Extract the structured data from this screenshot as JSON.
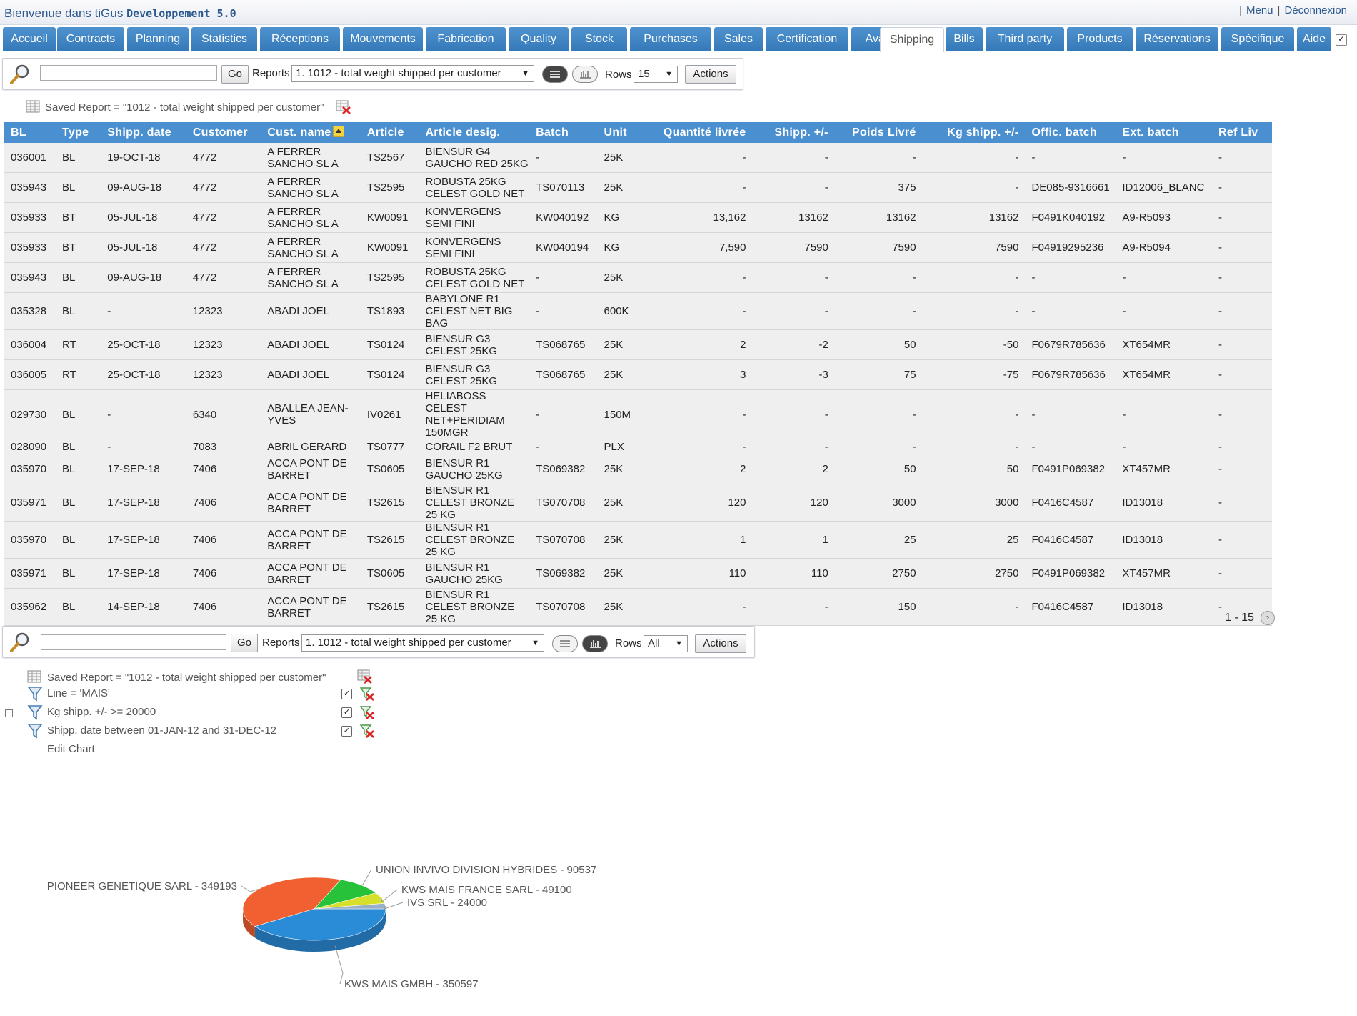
{
  "header": {
    "welcome": "Bienvenue dans tiGus",
    "app_version": "Developpement 5.0",
    "menu_link": "Menu",
    "logout_link": "Déconnexion"
  },
  "tabs": [
    "Accueil",
    "Contracts",
    "Planning",
    "Statistics",
    "Réceptions",
    "Mouvements",
    "Fabrication",
    "Quality",
    "Stock",
    "Purchases",
    "Sales",
    "Certification",
    "Available",
    "Shipping",
    "Bills",
    "Third party",
    "Products",
    "Réservations",
    "Spécifique",
    "Aide"
  ],
  "active_tab": "Shipping",
  "toolbar_top": {
    "search_value": "",
    "go_label": "Go",
    "reports_label": "Reports",
    "report_selected": "1. 1012 - total weight shipped per customer",
    "rows_label": "Rows",
    "rows_value": "15",
    "actions_label": "Actions"
  },
  "saved_report_top": "Saved Report = \"1012 - total weight shipped per customer\"",
  "table": {
    "columns": [
      "BL",
      "Type",
      "Shipp. date",
      "Customer",
      "Cust. name",
      "Article",
      "Article desig.",
      "Batch",
      "Unit",
      "Quantité livrée",
      "Shipp. +/-",
      "Poids Livré",
      "Kg shipp. +/-",
      "Offic. batch",
      "Ext. batch",
      "Ref Liv"
    ],
    "rows": [
      [
        "036001",
        "BL",
        "19-OCT-18",
        "4772",
        "A FERRER SANCHO SL A",
        "TS2567",
        "BIENSUR G4 GAUCHO RED 25KG",
        "-",
        "25K",
        "-",
        "-",
        "-",
        "-",
        "-",
        "-",
        "-"
      ],
      [
        "035943",
        "BL",
        "09-AUG-18",
        "4772",
        "A FERRER SANCHO SL A",
        "TS2595",
        "ROBUSTA 25KG CELEST GOLD NET",
        "TS070113",
        "25K",
        "-",
        "-",
        "375",
        "-",
        "DE085-9316661",
        "ID12006_BLANC",
        "-"
      ],
      [
        "035933",
        "BT",
        "05-JUL-18",
        "4772",
        "A FERRER SANCHO SL A",
        "KW0091",
        "KONVERGENS SEMI FINI",
        "KW040192",
        "KG",
        "13,162",
        "13162",
        "13162",
        "13162",
        "F0491K040192",
        "A9-R5093",
        "-"
      ],
      [
        "035933",
        "BT",
        "05-JUL-18",
        "4772",
        "A FERRER SANCHO SL A",
        "KW0091",
        "KONVERGENS SEMI FINI",
        "KW040194",
        "KG",
        "7,590",
        "7590",
        "7590",
        "7590",
        "F04919295236",
        "A9-R5094",
        "-"
      ],
      [
        "035943",
        "BL",
        "09-AUG-18",
        "4772",
        "A FERRER SANCHO SL A",
        "TS2595",
        "ROBUSTA 25KG CELEST GOLD NET",
        "-",
        "25K",
        "-",
        "-",
        "-",
        "-",
        "-",
        "-",
        "-"
      ],
      [
        "035328",
        "BL",
        "-",
        "12323",
        "ABADI JOEL",
        "TS1893",
        "BABYLONE R1 CELEST NET BIG BAG",
        "-",
        "600K",
        "-",
        "-",
        "-",
        "-",
        "-",
        "-",
        "-"
      ],
      [
        "036004",
        "RT",
        "25-OCT-18",
        "12323",
        "ABADI JOEL",
        "TS0124",
        "BIENSUR G3 CELEST 25KG",
        "TS068765",
        "25K",
        "2",
        "-2",
        "50",
        "-50",
        "F0679R785636",
        "XT654MR",
        "-"
      ],
      [
        "036005",
        "RT",
        "25-OCT-18",
        "12323",
        "ABADI JOEL",
        "TS0124",
        "BIENSUR G3 CELEST 25KG",
        "TS068765",
        "25K",
        "3",
        "-3",
        "75",
        "-75",
        "F0679R785636",
        "XT654MR",
        "-"
      ],
      [
        "029730",
        "BL",
        "-",
        "6340",
        "ABALLEA JEAN-YVES",
        "IV0261",
        "HELIABOSS CELEST NET+PERIDIAM 150MGR",
        "-",
        "150M",
        "-",
        "-",
        "-",
        "-",
        "-",
        "-",
        "-"
      ],
      [
        "028090",
        "BL",
        "-",
        "7083",
        "ABRIL GERARD",
        "TS0777",
        "CORAIL F2 BRUT",
        "-",
        "PLX",
        "-",
        "-",
        "-",
        "-",
        "-",
        "-",
        "-"
      ],
      [
        "035970",
        "BL",
        "17-SEP-18",
        "7406",
        "ACCA PONT DE BARRET",
        "TS0605",
        "BIENSUR R1 GAUCHO 25KG",
        "TS069382",
        "25K",
        "2",
        "2",
        "50",
        "50",
        "F0491P069382",
        "XT457MR",
        "-"
      ],
      [
        "035971",
        "BL",
        "17-SEP-18",
        "7406",
        "ACCA PONT DE BARRET",
        "TS2615",
        "BIENSUR R1 CELEST BRONZE 25 KG",
        "TS070708",
        "25K",
        "120",
        "120",
        "3000",
        "3000",
        "F0416C4587",
        "ID13018",
        "-"
      ],
      [
        "035970",
        "BL",
        "17-SEP-18",
        "7406",
        "ACCA PONT DE BARRET",
        "TS2615",
        "BIENSUR R1 CELEST BRONZE 25 KG",
        "TS070708",
        "25K",
        "1",
        "1",
        "25",
        "25",
        "F0416C4587",
        "ID13018",
        "-"
      ],
      [
        "035971",
        "BL",
        "17-SEP-18",
        "7406",
        "ACCA PONT DE BARRET",
        "TS0605",
        "BIENSUR R1 GAUCHO 25KG",
        "TS069382",
        "25K",
        "110",
        "110",
        "2750",
        "2750",
        "F0491P069382",
        "XT457MR",
        "-"
      ],
      [
        "035962",
        "BL",
        "14-SEP-18",
        "7406",
        "ACCA PONT DE BARRET",
        "TS2615",
        "BIENSUR R1 CELEST BRONZE 25 KG",
        "TS070708",
        "25K",
        "-",
        "-",
        "150",
        "-",
        "F0416C4587",
        "ID13018",
        "-"
      ]
    ],
    "pager": "1 - 15"
  },
  "toolbar_bottom": {
    "search_value": "",
    "go_label": "Go",
    "reports_label": "Reports",
    "report_selected": "1. 1012 - total weight shipped per customer",
    "rows_label": "Rows",
    "rows_value": "All",
    "actions_label": "Actions"
  },
  "saved_report_bottom": "Saved Report = \"1012 - total weight shipped per customer\"",
  "filters": [
    "Line = 'MAIS'",
    "Kg shipp. +/- >= 20000",
    "Shipp. date between 01-JAN-12 and 31-DEC-12"
  ],
  "edit_chart_label": "Edit Chart",
  "colors": {
    "tab": "#3d82c2",
    "header_bg": "#4a8fd0",
    "row_bg": "#efefef"
  },
  "chart_data": {
    "type": "pie",
    "slices": [
      {
        "label": "KWS MAIS GMBH - 350597",
        "name": "KWS MAIS GMBH",
        "value": 350597,
        "color": "#2a8bd6"
      },
      {
        "label": "PIONEER GENETIQUE SARL - 349193",
        "name": "PIONEER GENETIQUE SARL",
        "value": 349193,
        "color": "#f06030"
      },
      {
        "label": "UNION INVIVO DIVISION HYBRIDES - 90537",
        "name": "UNION INVIVO DIVISION HYBRIDES",
        "value": 90537,
        "color": "#27c23a"
      },
      {
        "label": "KWS MAIS FRANCE SARL - 49100",
        "name": "KWS MAIS FRANCE SARL",
        "value": 49100,
        "color": "#d6e02a"
      },
      {
        "label": "IVS SRL - 24000",
        "name": "IVS SRL",
        "value": 24000,
        "color": "#9ab0c8"
      }
    ]
  }
}
